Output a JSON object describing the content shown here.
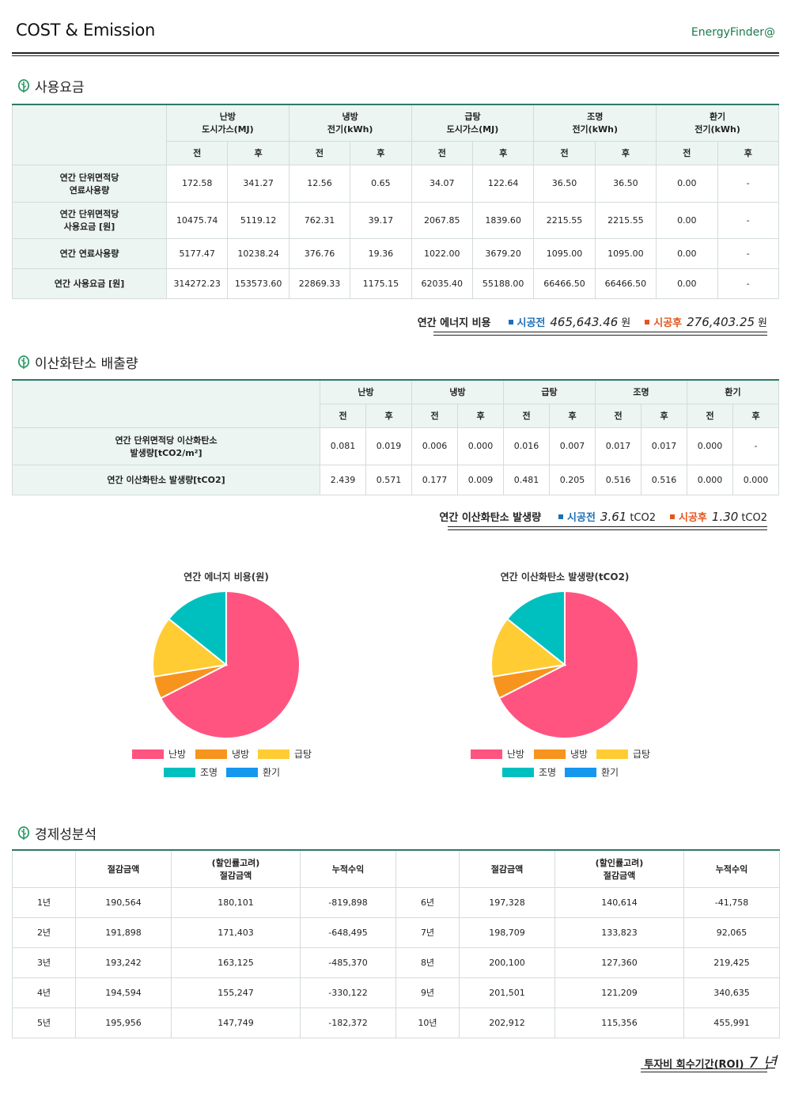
{
  "header": {
    "title": "COST & Emission",
    "brand": "EnergyFinder@"
  },
  "section1": {
    "title": "사용요금",
    "cols": [
      {
        "name": "난방",
        "fuel": "도시가스(MJ)"
      },
      {
        "name": "냉방",
        "fuel": "전기(kWh)"
      },
      {
        "name": "급탕",
        "fuel": "도시가스(MJ)"
      },
      {
        "name": "조명",
        "fuel": "전기(kWh)"
      },
      {
        "name": "환기",
        "fuel": "전기(kWh)"
      }
    ],
    "before": "전",
    "after": "후",
    "rows": [
      {
        "label1": "연간 단위면적당",
        "label2": "연료사용량",
        "vals": [
          "172.58",
          "341.27",
          "12.56",
          "0.65",
          "34.07",
          "122.64",
          "36.50",
          "36.50",
          "0.00",
          "-"
        ]
      },
      {
        "label1": "연간 단위면적당",
        "label2": "사용요금 [원]",
        "vals": [
          "10475.74",
          "5119.12",
          "762.31",
          "39.17",
          "2067.85",
          "1839.60",
          "2215.55",
          "2215.55",
          "0.00",
          "-"
        ]
      },
      {
        "label1": "연간 연료사용량",
        "label2": "",
        "vals": [
          "5177.47",
          "10238.24",
          "376.76",
          "19.36",
          "1022.00",
          "3679.20",
          "1095.00",
          "1095.00",
          "0.00",
          "-"
        ]
      },
      {
        "label1": "연간 사용요금 [원]",
        "label2": "",
        "vals": [
          "314272.23",
          "153573.60",
          "22869.33",
          "1175.15",
          "62035.40",
          "55188.00",
          "66466.50",
          "66466.50",
          "0.00",
          "-"
        ]
      }
    ],
    "summary": {
      "label": "연간 에너지 비용",
      "before_label": "시공전",
      "before_value": "465,643.46",
      "after_label": "시공후",
      "after_value": "276,403.25",
      "unit": "원"
    }
  },
  "section2": {
    "title": "이산화탄소 배출량",
    "cols": [
      "난방",
      "냉방",
      "급탕",
      "조명",
      "환기"
    ],
    "before": "전",
    "after": "후",
    "rows": [
      {
        "label1": "연간 단위면적당 이산화탄소",
        "label2": "발생량[tCO2/m²]",
        "vals": [
          "0.081",
          "0.019",
          "0.006",
          "0.000",
          "0.016",
          "0.007",
          "0.017",
          "0.017",
          "0.000",
          "-"
        ]
      },
      {
        "label1": "연간 이산화탄소 발생량[tCO2]",
        "label2": "",
        "vals": [
          "2.439",
          "0.571",
          "0.177",
          "0.009",
          "0.481",
          "0.205",
          "0.516",
          "0.516",
          "0.000",
          "0.000"
        ]
      }
    ],
    "summary": {
      "label": "연간 이산화탄소 발생량",
      "before_label": "시공전",
      "before_value": "3.61",
      "after_label": "시공후",
      "after_value": "1.30",
      "unit": "tCO2"
    }
  },
  "colors": {
    "heating": "#ff5480",
    "cooling": "#f7941d",
    "hotwater": "#ffcc33",
    "lighting": "#00c0bf",
    "ventilation": "#1597ee",
    "accent": "#2b7a67",
    "blue": "#1f6fb5",
    "red": "#e4561e"
  },
  "chart_data": [
    {
      "type": "pie",
      "title": "연간 에너지 비용(원)",
      "categories": [
        "난방",
        "냉방",
        "급탕",
        "조명",
        "환기"
      ],
      "values": [
        314272.23,
        22869.33,
        62035.4,
        66466.5,
        0
      ]
    },
    {
      "type": "pie",
      "title": "연간 이산화탄소 발생량(tCO2)",
      "categories": [
        "난방",
        "냉방",
        "급탕",
        "조명",
        "환기"
      ],
      "values": [
        2.439,
        0.177,
        0.481,
        0.516,
        0
      ]
    }
  ],
  "section3": {
    "title": "경제성분석",
    "headers": {
      "saving": "절감금액",
      "discount1": "(할인률고려)",
      "discount2": "절감금액",
      "cumulative": "누적수익"
    },
    "rows": [
      {
        "y1": "1년",
        "s1": "190,564",
        "d1": "180,101",
        "c1": "-819,898",
        "y2": "6년",
        "s2": "197,328",
        "d2": "140,614",
        "c2": "-41,758"
      },
      {
        "y1": "2년",
        "s1": "191,898",
        "d1": "171,403",
        "c1": "-648,495",
        "y2": "7년",
        "s2": "198,709",
        "d2": "133,823",
        "c2": "92,065"
      },
      {
        "y1": "3년",
        "s1": "193,242",
        "d1": "163,125",
        "c1": "-485,370",
        "y2": "8년",
        "s2": "200,100",
        "d2": "127,360",
        "c2": "219,425"
      },
      {
        "y1": "4년",
        "s1": "194,594",
        "d1": "155,247",
        "c1": "-330,122",
        "y2": "9년",
        "s2": "201,501",
        "d2": "121,209",
        "c2": "340,635"
      },
      {
        "y1": "5년",
        "s1": "195,956",
        "d1": "147,749",
        "c1": "-182,372",
        "y2": "10년",
        "s2": "202,912",
        "d2": "115,356",
        "c2": "455,991"
      }
    ],
    "roi_label": "투자비 회수기간(ROI)",
    "roi_value": "7 년"
  }
}
